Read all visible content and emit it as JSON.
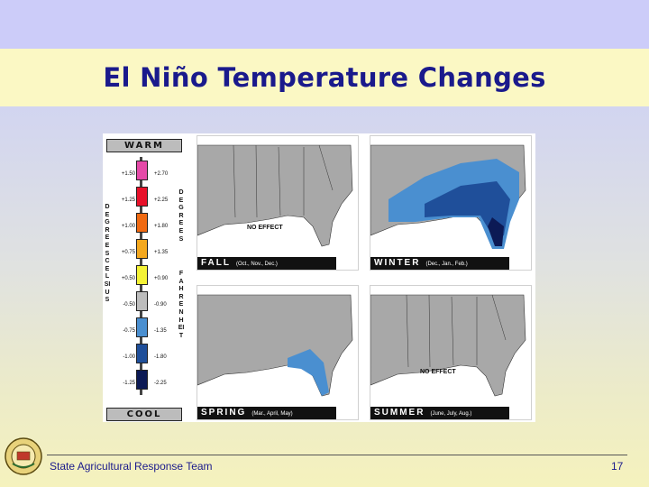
{
  "slide": {
    "title": "El Niño Temperature Changes",
    "footer": "State Agricultural Response Team",
    "page_number": "17"
  },
  "legend": {
    "warm_label": "WARM",
    "cool_label": "COOL",
    "celsius_word": "DEGREES CELSIUS",
    "fahrenheit_word_1": "DEGREES",
    "fahrenheit_word_2": "FAHRENHEIT",
    "rows": [
      {
        "c": "+1.50",
        "f": "+2.70",
        "color": "#e54aa8"
      },
      {
        "c": "+1.25",
        "f": "+2.25",
        "color": "#e8112a"
      },
      {
        "c": "+1.00",
        "f": "+1.80",
        "color": "#f06a12"
      },
      {
        "c": "+0.75",
        "f": "+1.35",
        "color": "#f4a81e"
      },
      {
        "c": "+0.50",
        "f": "+0.90",
        "color": "#f4f236"
      },
      {
        "c": "-0.50",
        "f": "-0.90",
        "color": "#bdbdbd"
      },
      {
        "c": "-0.75",
        "f": "-1.35",
        "color": "#4a8fd0"
      },
      {
        "c": "-1.00",
        "f": "-1.80",
        "color": "#1f4f9a"
      },
      {
        "c": "-1.25",
        "f": "-2.25",
        "color": "#0c1a55"
      }
    ]
  },
  "maps": [
    {
      "season": "FALL",
      "months": "(Oct., Nov., Dec.)",
      "effect": "NO EFFECT"
    },
    {
      "season": "WINTER",
      "months": "(Dec., Jan., Feb.)",
      "effect": ""
    },
    {
      "season": "SPRING",
      "months": "(Mar., April, May)",
      "effect": ""
    },
    {
      "season": "SUMMER",
      "months": "(June, July, Aug.)",
      "effect": "NO EFFECT"
    }
  ]
}
